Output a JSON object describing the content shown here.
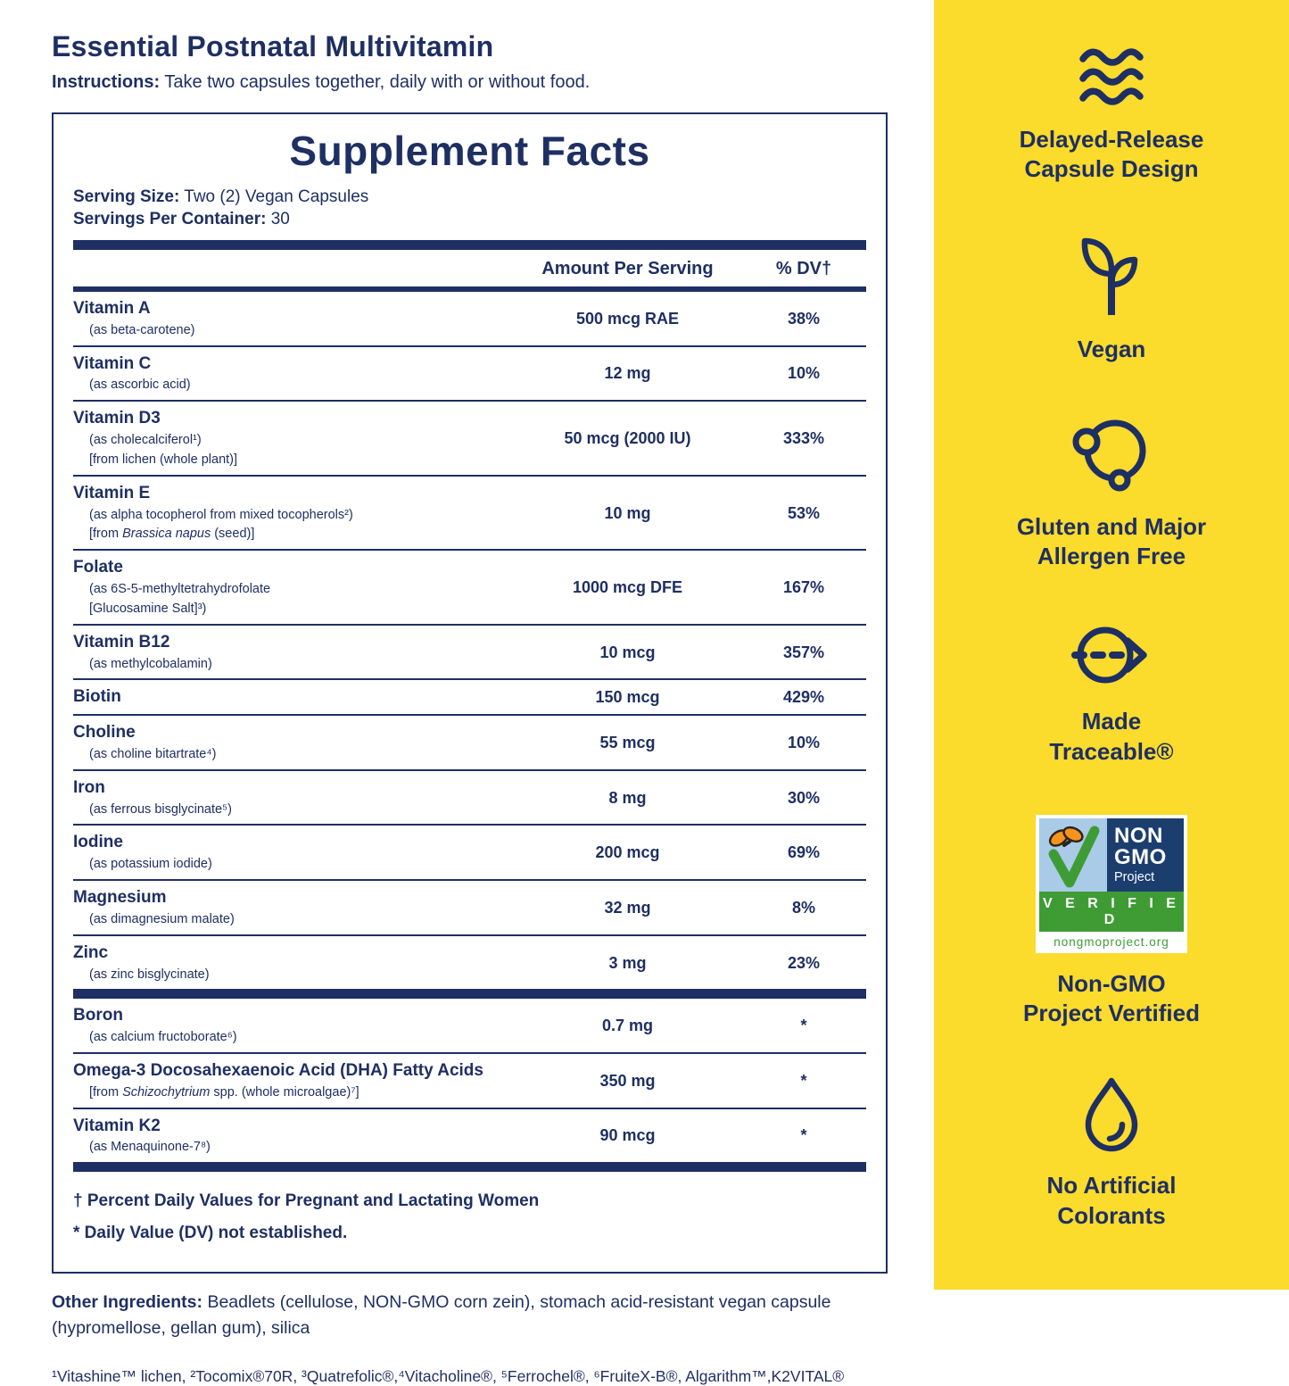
{
  "colors": {
    "navy": "#1e2f63",
    "yellow": "#fbdb2b",
    "badge_blue": "#a9cbe8",
    "badge_navy": "#1b3e6f",
    "badge_green": "#3f9c35",
    "butterfly_orange": "#f6921e"
  },
  "header": {
    "title": "Essential Postnatal Multivitamin",
    "instructions_label": "Instructions:",
    "instructions_text": " Take two capsules together, daily with or without food."
  },
  "facts": {
    "title": "Supplement Facts",
    "serving_size_label": "Serving Size:",
    "serving_size_value": " Two (2) Vegan Capsules",
    "servings_label": "Servings Per Container:",
    "servings_value": " 30",
    "col_amount": "Amount Per Serving",
    "col_dv": "% DV†",
    "rows_main": [
      {
        "name": "Vitamin A",
        "sub": [
          [
            {
              "t": "(as beta-carotene)"
            }
          ]
        ],
        "amount": "500 mcg RAE",
        "dv": "38%"
      },
      {
        "name": "Vitamin C",
        "sub": [
          [
            {
              "t": "(as ascorbic acid)"
            }
          ]
        ],
        "amount": "12 mg",
        "dv": "10%"
      },
      {
        "name": "Vitamin D3",
        "sub": [
          [
            {
              "t": "(as cholecalciferol¹)"
            }
          ],
          [
            {
              "t": "[from lichen (whole plant)]"
            }
          ]
        ],
        "amount": "50 mcg (2000 IU)",
        "dv": "333%"
      },
      {
        "name": "Vitamin E",
        "sub": [
          [
            {
              "t": "(as alpha tocopherol from mixed tocopherols²)"
            }
          ],
          [
            {
              "t": "[from "
            },
            {
              "t": "Brassica napus",
              "i": true
            },
            {
              "t": " (seed)]"
            }
          ]
        ],
        "amount": "10 mg",
        "dv": "53%"
      },
      {
        "name": "Folate",
        "sub": [
          [
            {
              "t": "(as 6S-5-methyltetrahydrofolate"
            }
          ],
          [
            {
              "t": "[Glucosamine Salt]³)"
            }
          ]
        ],
        "amount": "1000 mcg DFE",
        "dv": "167%"
      },
      {
        "name": "Vitamin B12",
        "sub": [
          [
            {
              "t": "(as methylcobalamin)"
            }
          ]
        ],
        "amount": "10 mcg",
        "dv": "357%"
      },
      {
        "name": "Biotin",
        "sub": [],
        "amount": "150 mcg",
        "dv": "429%"
      },
      {
        "name": "Choline",
        "sub": [
          [
            {
              "t": "(as choline bitartrate⁴)"
            }
          ]
        ],
        "amount": "55 mcg",
        "dv": "10%"
      },
      {
        "name": "Iron",
        "sub": [
          [
            {
              "t": "(as ferrous bisglycinate⁵)"
            }
          ]
        ],
        "amount": "8 mg",
        "dv": "30%"
      },
      {
        "name": "Iodine",
        "sub": [
          [
            {
              "t": "(as potassium iodide)"
            }
          ]
        ],
        "amount": "200 mcg",
        "dv": "69%"
      },
      {
        "name": "Magnesium",
        "sub": [
          [
            {
              "t": "(as dimagnesium malate)"
            }
          ]
        ],
        "amount": "32 mg",
        "dv": "8%"
      },
      {
        "name": "Zinc",
        "sub": [
          [
            {
              "t": "(as zinc bisglycinate)"
            }
          ]
        ],
        "amount": "3 mg",
        "dv": "23%"
      }
    ],
    "rows_star": [
      {
        "name": "Boron",
        "sub": [
          [
            {
              "t": "(as calcium fructoborate⁶)"
            }
          ]
        ],
        "amount": "0.7 mg",
        "dv": "*"
      },
      {
        "name": "Omega-3 Docosahexaenoic Acid (DHA) Fatty Acids",
        "sub": [
          [
            {
              "t": "[from "
            },
            {
              "t": "Schizochytrium",
              "i": true
            },
            {
              "t": " spp. (whole microalgae)⁷]"
            }
          ]
        ],
        "amount": "350 mg",
        "dv": "*"
      },
      {
        "name": "Vitamin K2",
        "sub": [
          [
            {
              "t": "(as Menaquinone-7⁸)"
            }
          ]
        ],
        "amount": "90 mcg",
        "dv": "*"
      }
    ],
    "footnote_dagger": "† Percent Daily Values for Pregnant and Lactating Women",
    "footnote_star": "* Daily Value (DV) not established."
  },
  "footer": {
    "other_label": "Other Ingredients:",
    "other_text": " Beadlets (cellulose, NON-GMO corn zein), stomach acid-resistant vegan capsule (hypromellose, gellan gum), silica",
    "trademarks": "¹Vitashine™ lichen, ²Tocomix®70R, ³Quatrefolic®,⁴Vitacholine®, ⁵Ferrochel®, ⁶FruiteX-B®, Algarithm™,K2VITAL®"
  },
  "sidebar": {
    "items": [
      {
        "id": "delayed-release",
        "icon": "waves-icon",
        "lines": [
          "Delayed-Release",
          "Capsule Design"
        ]
      },
      {
        "id": "vegan",
        "icon": "plant-icon",
        "lines": [
          "Vegan"
        ]
      },
      {
        "id": "allergen-free",
        "icon": "circles-icon",
        "lines": [
          "Gluten and Major",
          "Allergen Free"
        ]
      },
      {
        "id": "made-traceable",
        "icon": "traceable-arrow-icon",
        "lines": [
          "Made",
          "Traceable®"
        ]
      },
      {
        "id": "non-gmo",
        "icon": "non-gmo-badge",
        "lines": [
          "Non-GMO",
          "Project Vertified"
        ]
      },
      {
        "id": "no-colorants",
        "icon": "water-drop-icon",
        "lines": [
          "No Artificial",
          "Colorants"
        ]
      }
    ],
    "badge": {
      "non": "NON",
      "gmo": "GMO",
      "project": "Project",
      "verified": "V E R I F I E D",
      "url": "nongmoproject.org"
    }
  }
}
